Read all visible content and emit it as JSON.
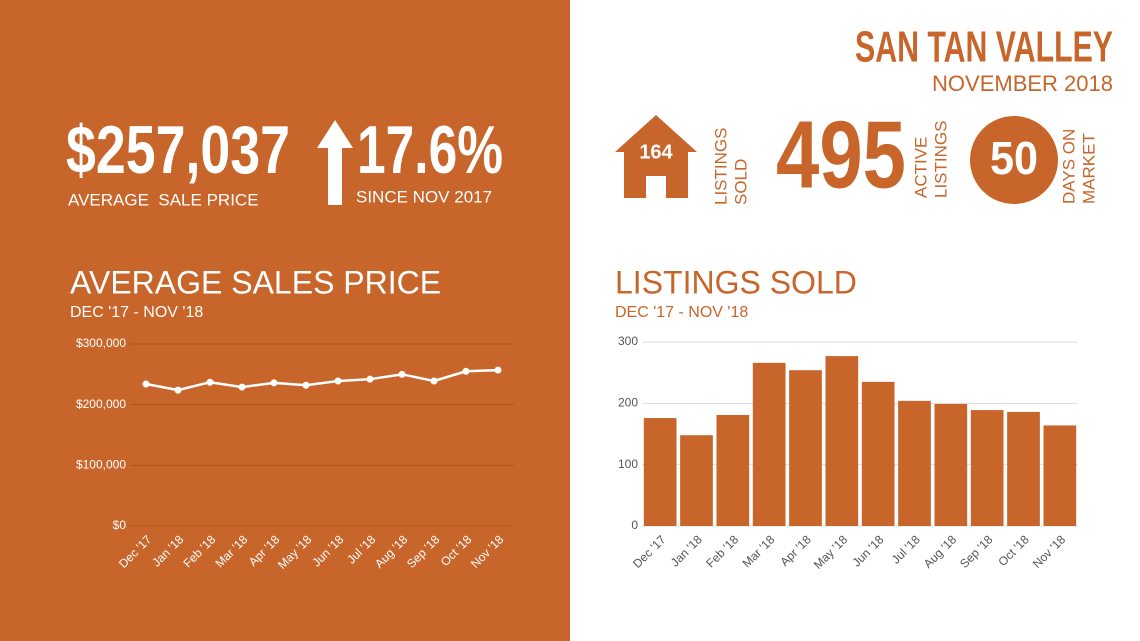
{
  "header": {
    "title": "SAN TAN VALLEY",
    "subtitle": "NOVEMBER 2018"
  },
  "stats": {
    "average_price": {
      "value": "$257,037",
      "label": "AVERAGE  SALE PRICE"
    },
    "change": {
      "value": "17.6%",
      "label": "SINCE NOV 2017"
    },
    "listings_sold": {
      "value": "164",
      "label": [
        "LISTINGS",
        "SOLD"
      ]
    },
    "active_listings": {
      "value": "495",
      "label": [
        "ACTIVE",
        "LISTINGS"
      ]
    },
    "days_on_market": {
      "value": "50",
      "label": [
        "DAYS ON",
        "MARKET"
      ]
    }
  },
  "chart_data": [
    {
      "type": "line",
      "title": "AVERAGE SALES PRICE",
      "subtitle": "DEC '17 - NOV '18",
      "categories": [
        "Dec '17",
        "Jan '18",
        "Feb '18",
        "Mar '18",
        "Apr '18",
        "May '18",
        "Jun '18",
        "Jul '18",
        "Aug '18",
        "Sep '18",
        "Oct '18",
        "Nov '18"
      ],
      "values": [
        234000,
        224000,
        237000,
        229000,
        236000,
        232000,
        239000,
        242000,
        250000,
        239000,
        255000,
        257000
      ],
      "color": "#ffffff",
      "ylim": [
        0,
        300000
      ],
      "yticks": [
        {
          "value": 0,
          "label": "$0"
        },
        {
          "value": 100000,
          "label": "$100,000"
        },
        {
          "value": 200000,
          "label": "$200,000"
        },
        {
          "value": 300000,
          "label": "$300,000"
        }
      ],
      "grid": true
    },
    {
      "type": "bar",
      "title": "LISTINGS SOLD",
      "subtitle": "DEC '17 - NOV '18",
      "categories": [
        "Dec '17",
        "Jan '18",
        "Feb '18",
        "Mar '18",
        "Apr '18",
        "May '18",
        "Jun '18",
        "Jul '18",
        "Aug '18",
        "Sep '18",
        "Oct '18",
        "Nov '18"
      ],
      "values": [
        176,
        148,
        181,
        266,
        254,
        277,
        235,
        204,
        199,
        189,
        186,
        164
      ],
      "color": "#c8652a",
      "ylim": [
        0,
        300
      ],
      "yticks": [
        0,
        100,
        200,
        300
      ],
      "grid": true
    }
  ]
}
